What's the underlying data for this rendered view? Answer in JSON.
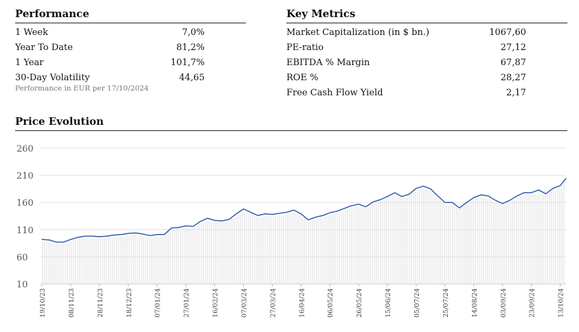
{
  "performance": {
    "title": "Performance",
    "rows": [
      {
        "label": "1 Week",
        "value": "7,0%"
      },
      {
        "label": "Year To Date",
        "value": "81,2%"
      },
      {
        "label": "1 Year",
        "value": "101,7%"
      },
      {
        "label": "30-Day Volatility",
        "value": "44,65"
      }
    ],
    "note": "Performance in EUR per 17/10/2024"
  },
  "key_metrics": {
    "title": "Key Metrics",
    "rows": [
      {
        "label": "Market Capitalization (in $ bn.)",
        "value": "1067,60"
      },
      {
        "label": "PE-ratio",
        "value": "27,12"
      },
      {
        "label": "EBITDA % Margin",
        "value": "67,87"
      },
      {
        "label": "ROE %",
        "value": "28,27"
      },
      {
        "label": "Free Cash Flow Yield",
        "value": "2,17"
      }
    ]
  },
  "price_evolution": {
    "title": "Price Evolution"
  },
  "colors": {
    "line": "#3a66ad",
    "grid": "#e2e2e2",
    "bars": "#dcdcdc"
  },
  "chart_data": {
    "type": "line",
    "title": "Price Evolution",
    "xlabel": "",
    "ylabel": "",
    "ylim": [
      10,
      260
    ],
    "y_ticks": [
      "10",
      "60",
      "110",
      "160",
      "210",
      "260"
    ],
    "x_ticks": [
      "19/10/23",
      "08/11/23",
      "28/11/23",
      "18/12/23",
      "07/01/24",
      "27/01/24",
      "16/02/24",
      "07/03/24",
      "27/03/24",
      "16/04/24",
      "06/05/24",
      "26/05/24",
      "15/06/24",
      "05/07/24",
      "25/07/24",
      "14/08/24",
      "03/09/24",
      "23/09/24",
      "13/10/24"
    ],
    "grid": true,
    "points": [
      [
        "19/10/23",
        92
      ],
      [
        "24/10/23",
        91
      ],
      [
        "29/10/23",
        87
      ],
      [
        "03/11/23",
        87
      ],
      [
        "08/11/23",
        92
      ],
      [
        "13/11/23",
        96
      ],
      [
        "18/11/23",
        98
      ],
      [
        "23/11/23",
        98
      ],
      [
        "28/11/23",
        97
      ],
      [
        "03/12/23",
        98
      ],
      [
        "08/12/23",
        100
      ],
      [
        "13/12/23",
        101
      ],
      [
        "18/12/23",
        103
      ],
      [
        "23/12/23",
        104
      ],
      [
        "28/12/23",
        102
      ],
      [
        "02/01/24",
        99
      ],
      [
        "07/01/24",
        101
      ],
      [
        "12/01/24",
        101
      ],
      [
        "17/01/24",
        113
      ],
      [
        "22/01/24",
        114
      ],
      [
        "27/01/24",
        117
      ],
      [
        "01/02/24",
        116
      ],
      [
        "06/02/24",
        125
      ],
      [
        "11/02/24",
        131
      ],
      [
        "16/02/24",
        127
      ],
      [
        "21/02/24",
        126
      ],
      [
        "26/02/24",
        129
      ],
      [
        "02/03/24",
        139
      ],
      [
        "07/03/24",
        148
      ],
      [
        "12/03/24",
        142
      ],
      [
        "17/03/24",
        136
      ],
      [
        "22/03/24",
        139
      ],
      [
        "27/03/24",
        138
      ],
      [
        "01/04/24",
        140
      ],
      [
        "06/04/24",
        142
      ],
      [
        "11/04/24",
        146
      ],
      [
        "16/04/24",
        139
      ],
      [
        "21/04/24",
        128
      ],
      [
        "26/04/24",
        133
      ],
      [
        "01/05/24",
        136
      ],
      [
        "06/05/24",
        141
      ],
      [
        "11/05/24",
        144
      ],
      [
        "16/05/24",
        149
      ],
      [
        "21/05/24",
        154
      ],
      [
        "26/05/24",
        157
      ],
      [
        "31/05/24",
        152
      ],
      [
        "05/06/24",
        161
      ],
      [
        "10/06/24",
        165
      ],
      [
        "15/06/24",
        171
      ],
      [
        "20/06/24",
        178
      ],
      [
        "25/06/24",
        171
      ],
      [
        "30/06/24",
        175
      ],
      [
        "05/07/24",
        186
      ],
      [
        "10/07/24",
        190
      ],
      [
        "15/07/24",
        185
      ],
      [
        "20/07/24",
        172
      ],
      [
        "25/07/24",
        160
      ],
      [
        "30/07/24",
        160
      ],
      [
        "04/08/24",
        150
      ],
      [
        "09/08/24",
        160
      ],
      [
        "14/08/24",
        169
      ],
      [
        "19/08/24",
        174
      ],
      [
        "24/08/24",
        172
      ],
      [
        "29/08/24",
        164
      ],
      [
        "03/09/24",
        158
      ],
      [
        "08/09/24",
        164
      ],
      [
        "13/09/24",
        172
      ],
      [
        "18/09/24",
        178
      ],
      [
        "23/09/24",
        178
      ],
      [
        "28/09/24",
        183
      ],
      [
        "03/10/24",
        176
      ],
      [
        "08/10/24",
        186
      ],
      [
        "13/10/24",
        191
      ],
      [
        "17/10/24",
        204
      ]
    ]
  }
}
